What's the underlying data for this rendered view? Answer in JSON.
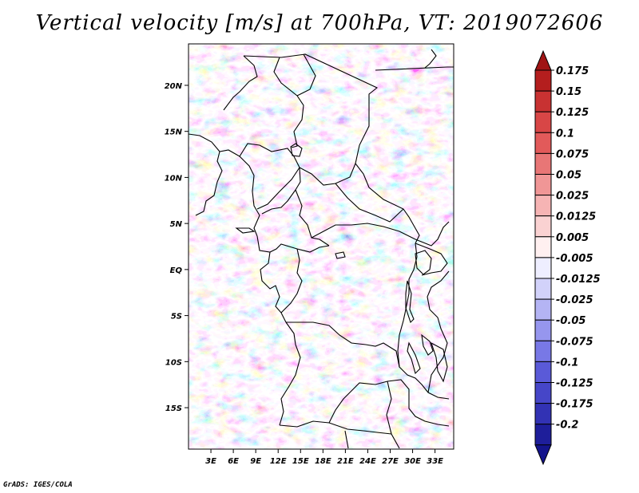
{
  "title": "Vertical velocity [m/s] at 700hPa, VT: 2019072606",
  "footer": "GrADS: IGES/COLA",
  "map": {
    "lon_range": [
      0,
      35.5
    ],
    "lat_range": [
      -19.5,
      24.5
    ],
    "lat_labels": [
      "20N",
      "15N",
      "10N",
      "5N",
      "EQ",
      "5S",
      "10S",
      "15S"
    ],
    "lat_values": [
      20,
      15,
      10,
      5,
      0,
      -5,
      -10,
      -15
    ],
    "lon_labels": [
      "3E",
      "6E",
      "9E",
      "12E",
      "15E",
      "18E",
      "21E",
      "24E",
      "27E",
      "30E",
      "33E"
    ],
    "lon_values": [
      3,
      6,
      9,
      12,
      15,
      18,
      21,
      24,
      27,
      30,
      33
    ]
  },
  "colorbar": {
    "labels": [
      "0.175",
      "0.15",
      "0.125",
      "0.1",
      "0.075",
      "0.05",
      "0.025",
      "0.0125",
      "0.005",
      "-0.005",
      "-0.0125",
      "-0.025",
      "-0.05",
      "-0.075",
      "-0.1",
      "-0.125",
      "-0.175",
      "-0.2"
    ],
    "colors": [
      "#b41e1e",
      "#c83232",
      "#d84646",
      "#e25a5a",
      "#e87676",
      "#f09696",
      "#f6b4b4",
      "#fad2d2",
      "#fff0f0",
      "#eeeeff",
      "#d2d2fa",
      "#b4b4f4",
      "#9696ee",
      "#7878e6",
      "#5a5ad8",
      "#4646c8",
      "#3232b4",
      "#1e1e9a"
    ],
    "top_color": "#a01414",
    "bottom_color": "#14148c"
  }
}
